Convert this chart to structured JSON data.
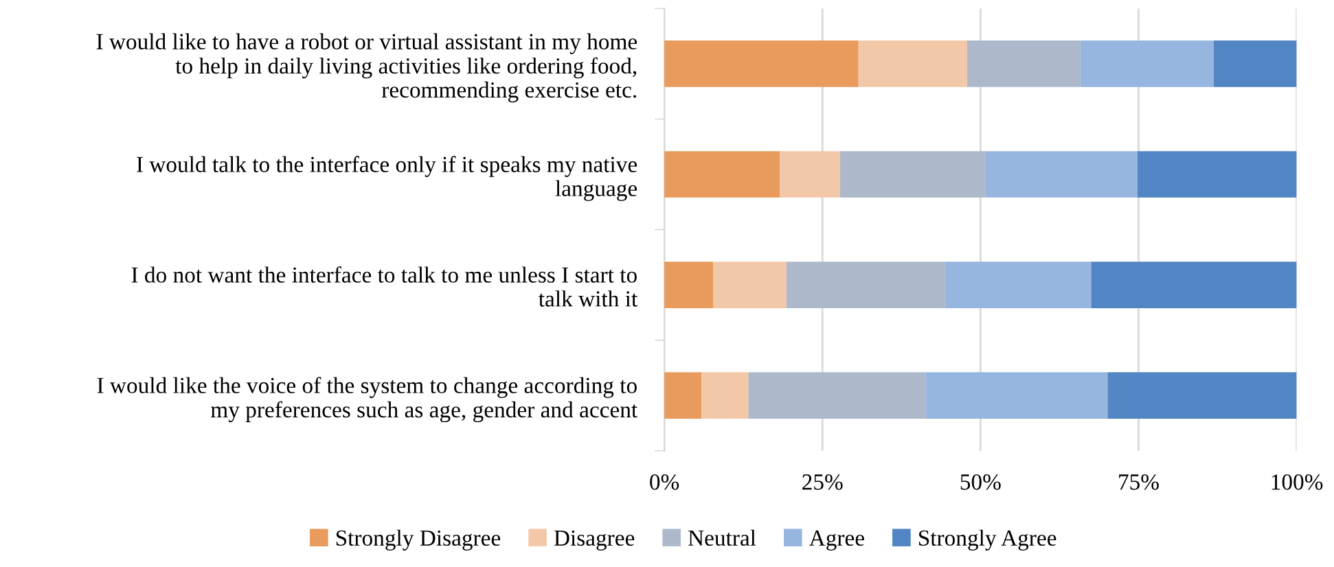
{
  "chart_data": {
    "type": "bar",
    "orientation": "horizontal",
    "stacked": true,
    "categories": [
      "I would like to have a robot or virtual assistant in my home\nto help in daily living activities like ordering food,\nrecommending exercise etc.",
      "I would talk to the interface only if it speaks my native\nlanguage",
      "I do not want the interface to talk to me unless I start to\ntalk with it",
      "I would like the voice of the system to change according to\nmy preferences such as age, gender and accent"
    ],
    "series": [
      {
        "name": "Strongly Disagree",
        "color": "#e89b5c",
        "values": [
          30.7,
          18.3,
          7.7,
          5.9
        ]
      },
      {
        "name": "Disagree",
        "color": "#f3c8a9",
        "values": [
          17.2,
          9.5,
          11.6,
          7.4
        ]
      },
      {
        "name": "Neutral",
        "color": "#adb9cb",
        "values": [
          17.9,
          23.0,
          25.1,
          28.0
        ]
      },
      {
        "name": "Agree",
        "color": "#96b6df",
        "values": [
          21.1,
          24.0,
          23.1,
          28.8
        ]
      },
      {
        "name": "Strongly Agree",
        "color": "#5285c3",
        "values": [
          13.1,
          25.2,
          32.5,
          29.9
        ]
      }
    ],
    "xlim": [
      0,
      100
    ],
    "xticks": [
      {
        "value": 0,
        "label": "0%"
      },
      {
        "value": 25,
        "label": "25%"
      },
      {
        "value": 50,
        "label": "50%"
      },
      {
        "value": 75,
        "label": "75%"
      },
      {
        "value": 100,
        "label": "100%"
      }
    ],
    "grid": "x",
    "legend": "bottom"
  }
}
